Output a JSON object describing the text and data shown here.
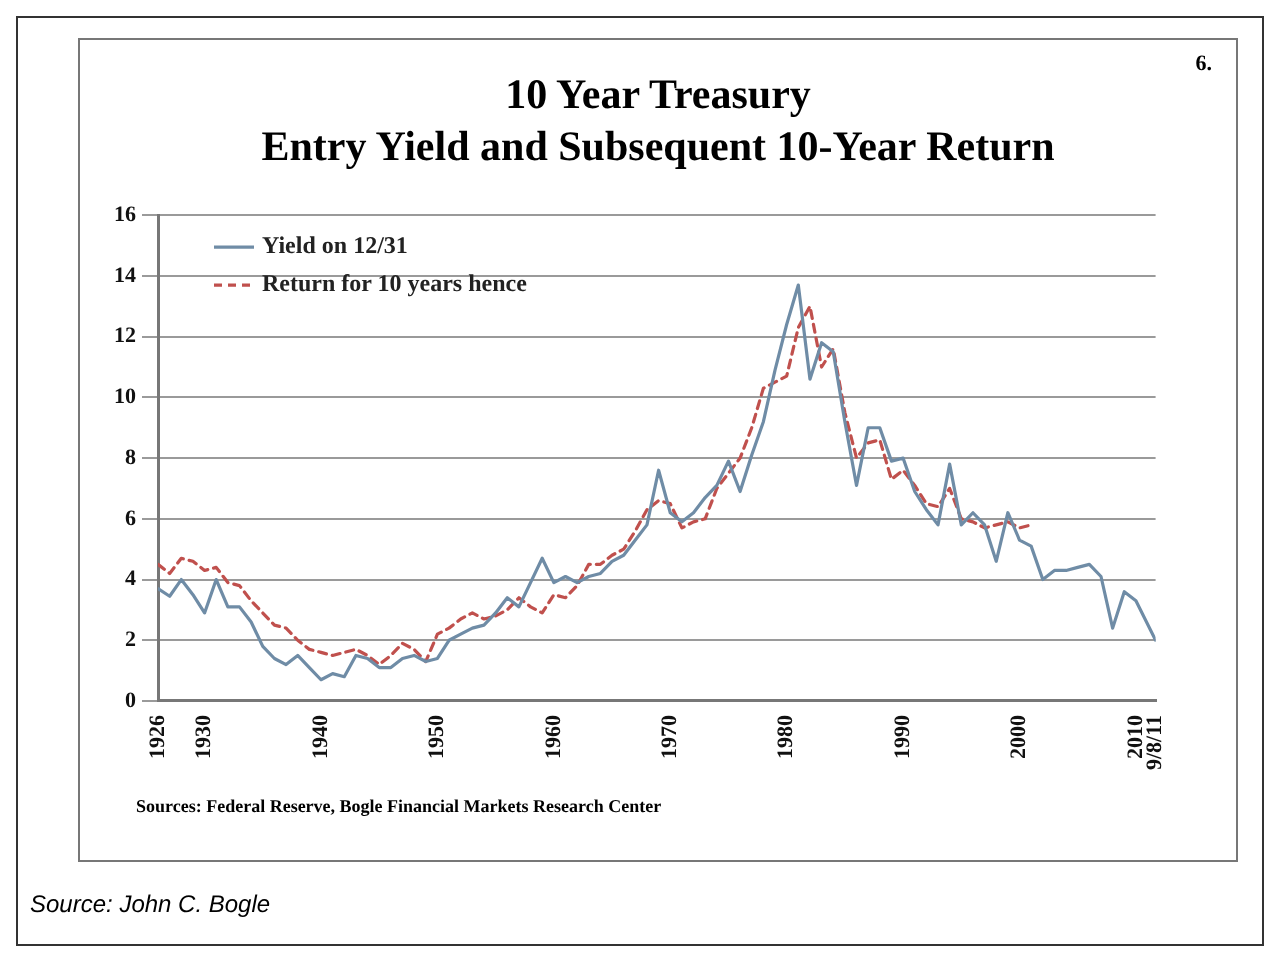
{
  "chart_data": {
    "type": "line",
    "title": "10 Year Treasury",
    "subtitle": "Entry Yield and Subsequent 10-Year Return",
    "annotations": [
      "6.",
      "Sources: Federal Reserve, Bogle Financial Markets Research Center",
      "Source: John C. Bogle"
    ],
    "xlim": [
      1926,
      2011.69
    ],
    "xticks": [
      1926,
      1930,
      1940,
      1950,
      1960,
      1970,
      1980,
      1990,
      2000,
      2010,
      {
        "value": 2011.69,
        "label": "9/8/11"
      }
    ],
    "ylim": [
      0,
      16
    ],
    "yticks": [
      0,
      2,
      4,
      6,
      8,
      10,
      12,
      14,
      16
    ],
    "grid": "y",
    "legend": "top left",
    "series": [
      {
        "name": "Yield on 12/31",
        "color": "#6f8ca6",
        "line_style": "solid",
        "x": [
          1926,
          1927,
          1928,
          1929,
          1930,
          1931,
          1932,
          1933,
          1934,
          1935,
          1936,
          1937,
          1938,
          1939,
          1940,
          1941,
          1942,
          1943,
          1944,
          1945,
          1946,
          1947,
          1948,
          1949,
          1950,
          1951,
          1952,
          1953,
          1954,
          1955,
          1956,
          1957,
          1958,
          1959,
          1960,
          1961,
          1962,
          1963,
          1964,
          1965,
          1966,
          1967,
          1968,
          1969,
          1970,
          1971,
          1972,
          1973,
          1974,
          1975,
          1976,
          1977,
          1978,
          1979,
          1980,
          1981,
          1982,
          1983,
          1984,
          1985,
          1986,
          1987,
          1988,
          1989,
          1990,
          1991,
          1992,
          1993,
          1994,
          1995,
          1996,
          1997,
          1998,
          1999,
          2000,
          2001,
          2002,
          2003,
          2004,
          2005,
          2006,
          2007,
          2008,
          2009,
          2010,
          2011.69
        ],
        "values": [
          3.7,
          3.45,
          4.0,
          3.5,
          2.9,
          4.0,
          3.1,
          3.1,
          2.6,
          1.8,
          1.4,
          1.2,
          1.5,
          1.1,
          0.7,
          0.9,
          0.8,
          1.5,
          1.4,
          1.1,
          1.1,
          1.4,
          1.5,
          1.3,
          1.4,
          2.0,
          2.2,
          2.4,
          2.5,
          2.9,
          3.4,
          3.1,
          3.9,
          4.7,
          3.9,
          4.1,
          3.9,
          4.1,
          4.2,
          4.6,
          4.8,
          5.3,
          5.8,
          7.6,
          6.2,
          5.9,
          6.2,
          6.7,
          7.1,
          7.9,
          6.9,
          8.1,
          9.2,
          10.9,
          12.4,
          13.7,
          10.6,
          11.8,
          11.5,
          9.2,
          7.1,
          9.0,
          9.0,
          7.9,
          8.0,
          6.9,
          6.3,
          5.8,
          7.8,
          5.8,
          6.2,
          5.8,
          4.6,
          6.2,
          5.3,
          5.1,
          4.0,
          4.3,
          4.3,
          4.4,
          4.5,
          4.1,
          2.4,
          3.6,
          3.3,
          2.0
        ]
      },
      {
        "name": "Return for 10 years hence",
        "color": "#c0504d",
        "line_style": "dashed",
        "x": [
          1926,
          1927,
          1928,
          1929,
          1930,
          1931,
          1932,
          1933,
          1934,
          1935,
          1936,
          1937,
          1938,
          1939,
          1940,
          1941,
          1942,
          1943,
          1944,
          1945,
          1946,
          1947,
          1948,
          1949,
          1950,
          1951,
          1952,
          1953,
          1954,
          1955,
          1956,
          1957,
          1958,
          1959,
          1960,
          1961,
          1962,
          1963,
          1964,
          1965,
          1966,
          1967,
          1968,
          1969,
          1970,
          1971,
          1972,
          1973,
          1974,
          1975,
          1976,
          1977,
          1978,
          1979,
          1980,
          1981,
          1982,
          1983,
          1984,
          1985,
          1986,
          1987,
          1988,
          1989,
          1990,
          1991,
          1992,
          1993,
          1994,
          1995,
          1996,
          1997,
          1998,
          1999,
          2000,
          2001
        ],
        "values": [
          4.5,
          4.2,
          4.7,
          4.6,
          4.3,
          4.4,
          3.9,
          3.8,
          3.3,
          2.9,
          2.5,
          2.4,
          2.0,
          1.7,
          1.6,
          1.5,
          1.6,
          1.7,
          1.5,
          1.2,
          1.5,
          1.9,
          1.7,
          1.3,
          2.2,
          2.4,
          2.7,
          2.9,
          2.7,
          2.8,
          3.0,
          3.4,
          3.1,
          2.9,
          3.5,
          3.4,
          3.8,
          4.5,
          4.5,
          4.8,
          5.0,
          5.6,
          6.3,
          6.6,
          6.5,
          5.7,
          5.9,
          6.0,
          7.0,
          7.5,
          8.0,
          9.0,
          10.3,
          10.5,
          10.7,
          12.3,
          13.0,
          11.0,
          11.6,
          9.5,
          8.0,
          8.5,
          8.6,
          7.3,
          7.6,
          7.1,
          6.5,
          6.4,
          7.0,
          6.0,
          5.9,
          5.7,
          5.8,
          5.9,
          5.7,
          5.8
        ]
      }
    ]
  }
}
